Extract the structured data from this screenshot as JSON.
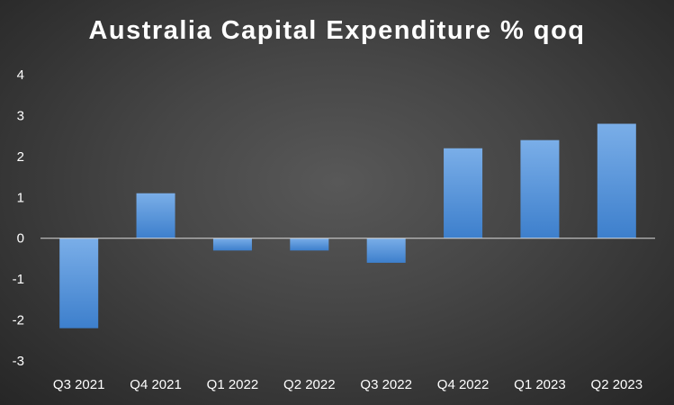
{
  "chart_data": {
    "type": "bar",
    "title": "Australia Capital Expenditure % qoq",
    "xlabel": "",
    "ylabel": "",
    "categories": [
      "Q3 2021",
      "Q4 2021",
      "Q1 2022",
      "Q2 2022",
      "Q3 2022",
      "Q4 2022",
      "Q1 2023",
      "Q2 2023"
    ],
    "values": [
      -2.2,
      1.1,
      -0.3,
      -0.3,
      -0.6,
      2.2,
      2.4,
      2.8
    ],
    "ylim": [
      -3,
      4
    ],
    "yticks": [
      "4",
      "3",
      "2",
      "1",
      "0",
      "-1",
      "-2",
      "-3"
    ],
    "grid": false,
    "legend": "none",
    "colors": {
      "bar_top": "#7aaee8",
      "bar_bottom": "#3d7fcc",
      "axis": "#d9d9d9",
      "text": "#ffffff"
    }
  }
}
